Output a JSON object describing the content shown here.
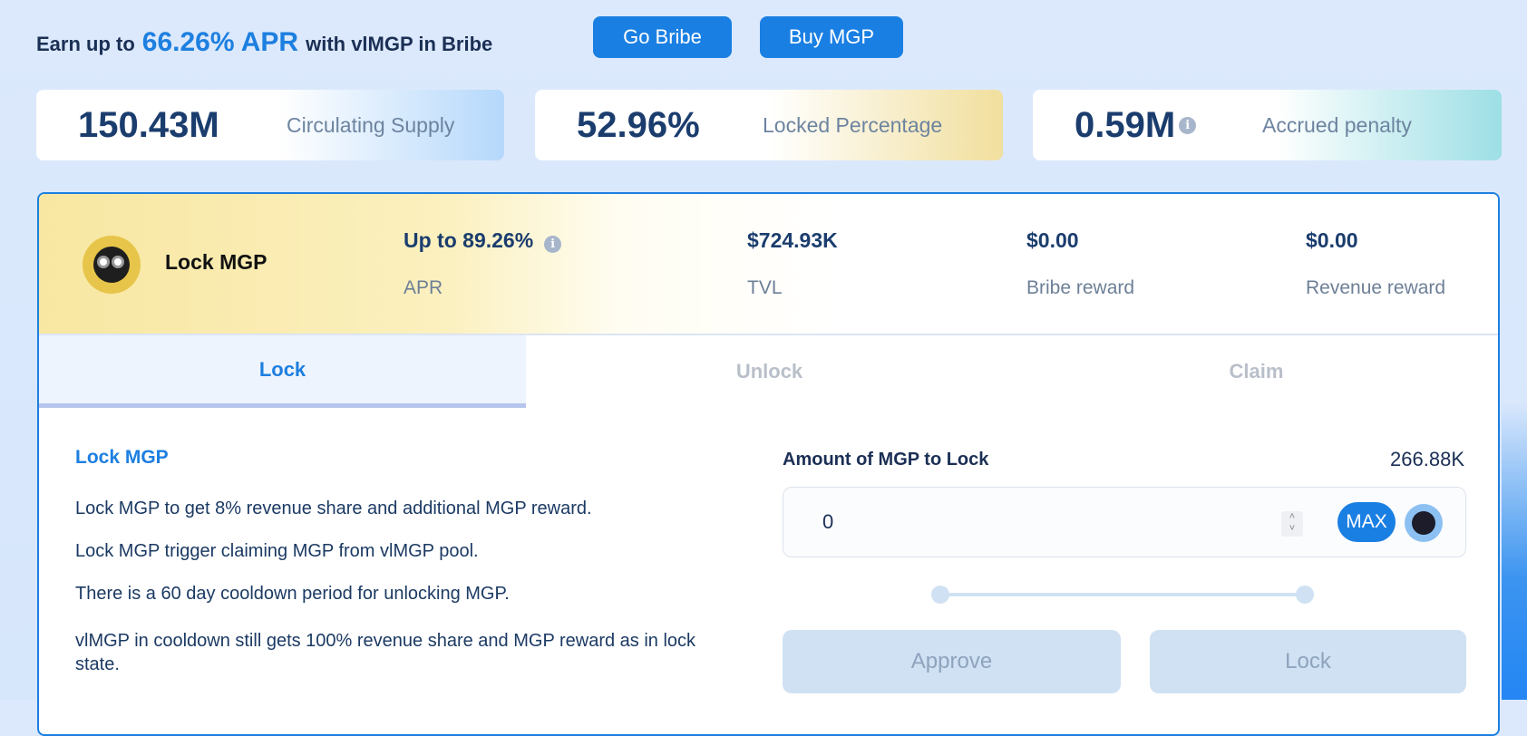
{
  "promo": {
    "prefix": "Earn up to",
    "highlight": "66.26% APR",
    "suffix": "with vlMGP in Bribe",
    "go_bribe": "Go Bribe",
    "buy_mgp": "Buy MGP"
  },
  "stats": [
    {
      "value": "150.43M",
      "label": "Circulating Supply"
    },
    {
      "value": "52.96%",
      "label": "Locked Percentage"
    },
    {
      "value": "0.59M",
      "label": "Accrued penalty",
      "info": "i"
    }
  ],
  "pool": {
    "title": "Lock MGP",
    "apr_value": "Up to 89.26%",
    "apr_label": "APR",
    "info": "i",
    "tvl_value": "$724.93K",
    "tvl_label": "TVL",
    "bribe_value": "$0.00",
    "bribe_label": "Bribe reward",
    "revenue_value": "$0.00",
    "revenue_label": "Revenue reward"
  },
  "tabs": [
    "Lock",
    "Unlock",
    "Claim"
  ],
  "lock": {
    "title": "Lock MGP",
    "paragraphs": [
      "Lock MGP to get 8% revenue share and additional MGP reward.",
      "Lock MGP trigger claiming MGP from vlMGP pool.",
      "There is a 60 day cooldown period for unlocking MGP.",
      "vlMGP in cooldown still gets 100% revenue share and MGP reward as in lock state."
    ],
    "amount_label": "Amount of MGP to Lock",
    "balance": "266.88K",
    "input_value": "0",
    "max": "MAX",
    "slider_value": 0,
    "approve": "Approve",
    "lock": "Lock"
  },
  "colors": {
    "accent": "#1d7fe0",
    "text": "#1b3d6e"
  }
}
